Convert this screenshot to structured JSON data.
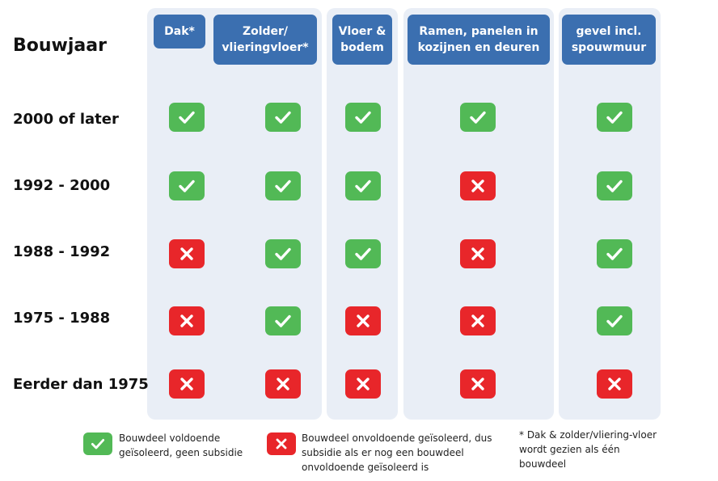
{
  "title": "Bouwjaar",
  "columns": [
    {
      "label": "Dak*"
    },
    {
      "label": "Zolder/ vlieringvloer*"
    },
    {
      "label": "Vloer & bodem"
    },
    {
      "label": "Ramen, panelen in kozijnen en deuren"
    },
    {
      "label": "gevel incl. spouwmuur"
    }
  ],
  "rows": [
    {
      "label": "2000 of later",
      "cells": [
        "ok",
        "ok",
        "ok",
        "ok",
        "ok"
      ]
    },
    {
      "label": "1992 - 2000",
      "cells": [
        "ok",
        "ok",
        "ok",
        "no",
        "ok"
      ]
    },
    {
      "label": "1988 - 1992",
      "cells": [
        "no",
        "ok",
        "ok",
        "no",
        "ok"
      ]
    },
    {
      "label": "1975 - 1988",
      "cells": [
        "no",
        "ok",
        "no",
        "no",
        "ok"
      ]
    },
    {
      "label": "Eerder dan 1975",
      "cells": [
        "no",
        "no",
        "no",
        "no",
        "no"
      ]
    }
  ],
  "legend": {
    "ok_text": "Bouwdeel voldoende geïsoleerd, geen subsidie",
    "no_text": "Bouwdeel onvoldoende geïsoleerd, dus subsidie als er nog een bouwdeel onvoldoende geïsoleerd is",
    "note_text": "* Dak & zolder/vliering-vloer wordt gezien als één bouwdeel"
  },
  "colors": {
    "header_bg": "#3b6fb0",
    "column_bg": "#e9eef6",
    "ok": "#52b956",
    "no": "#e8262a"
  },
  "icons": {
    "ok": "check-icon",
    "no": "cross-icon"
  }
}
